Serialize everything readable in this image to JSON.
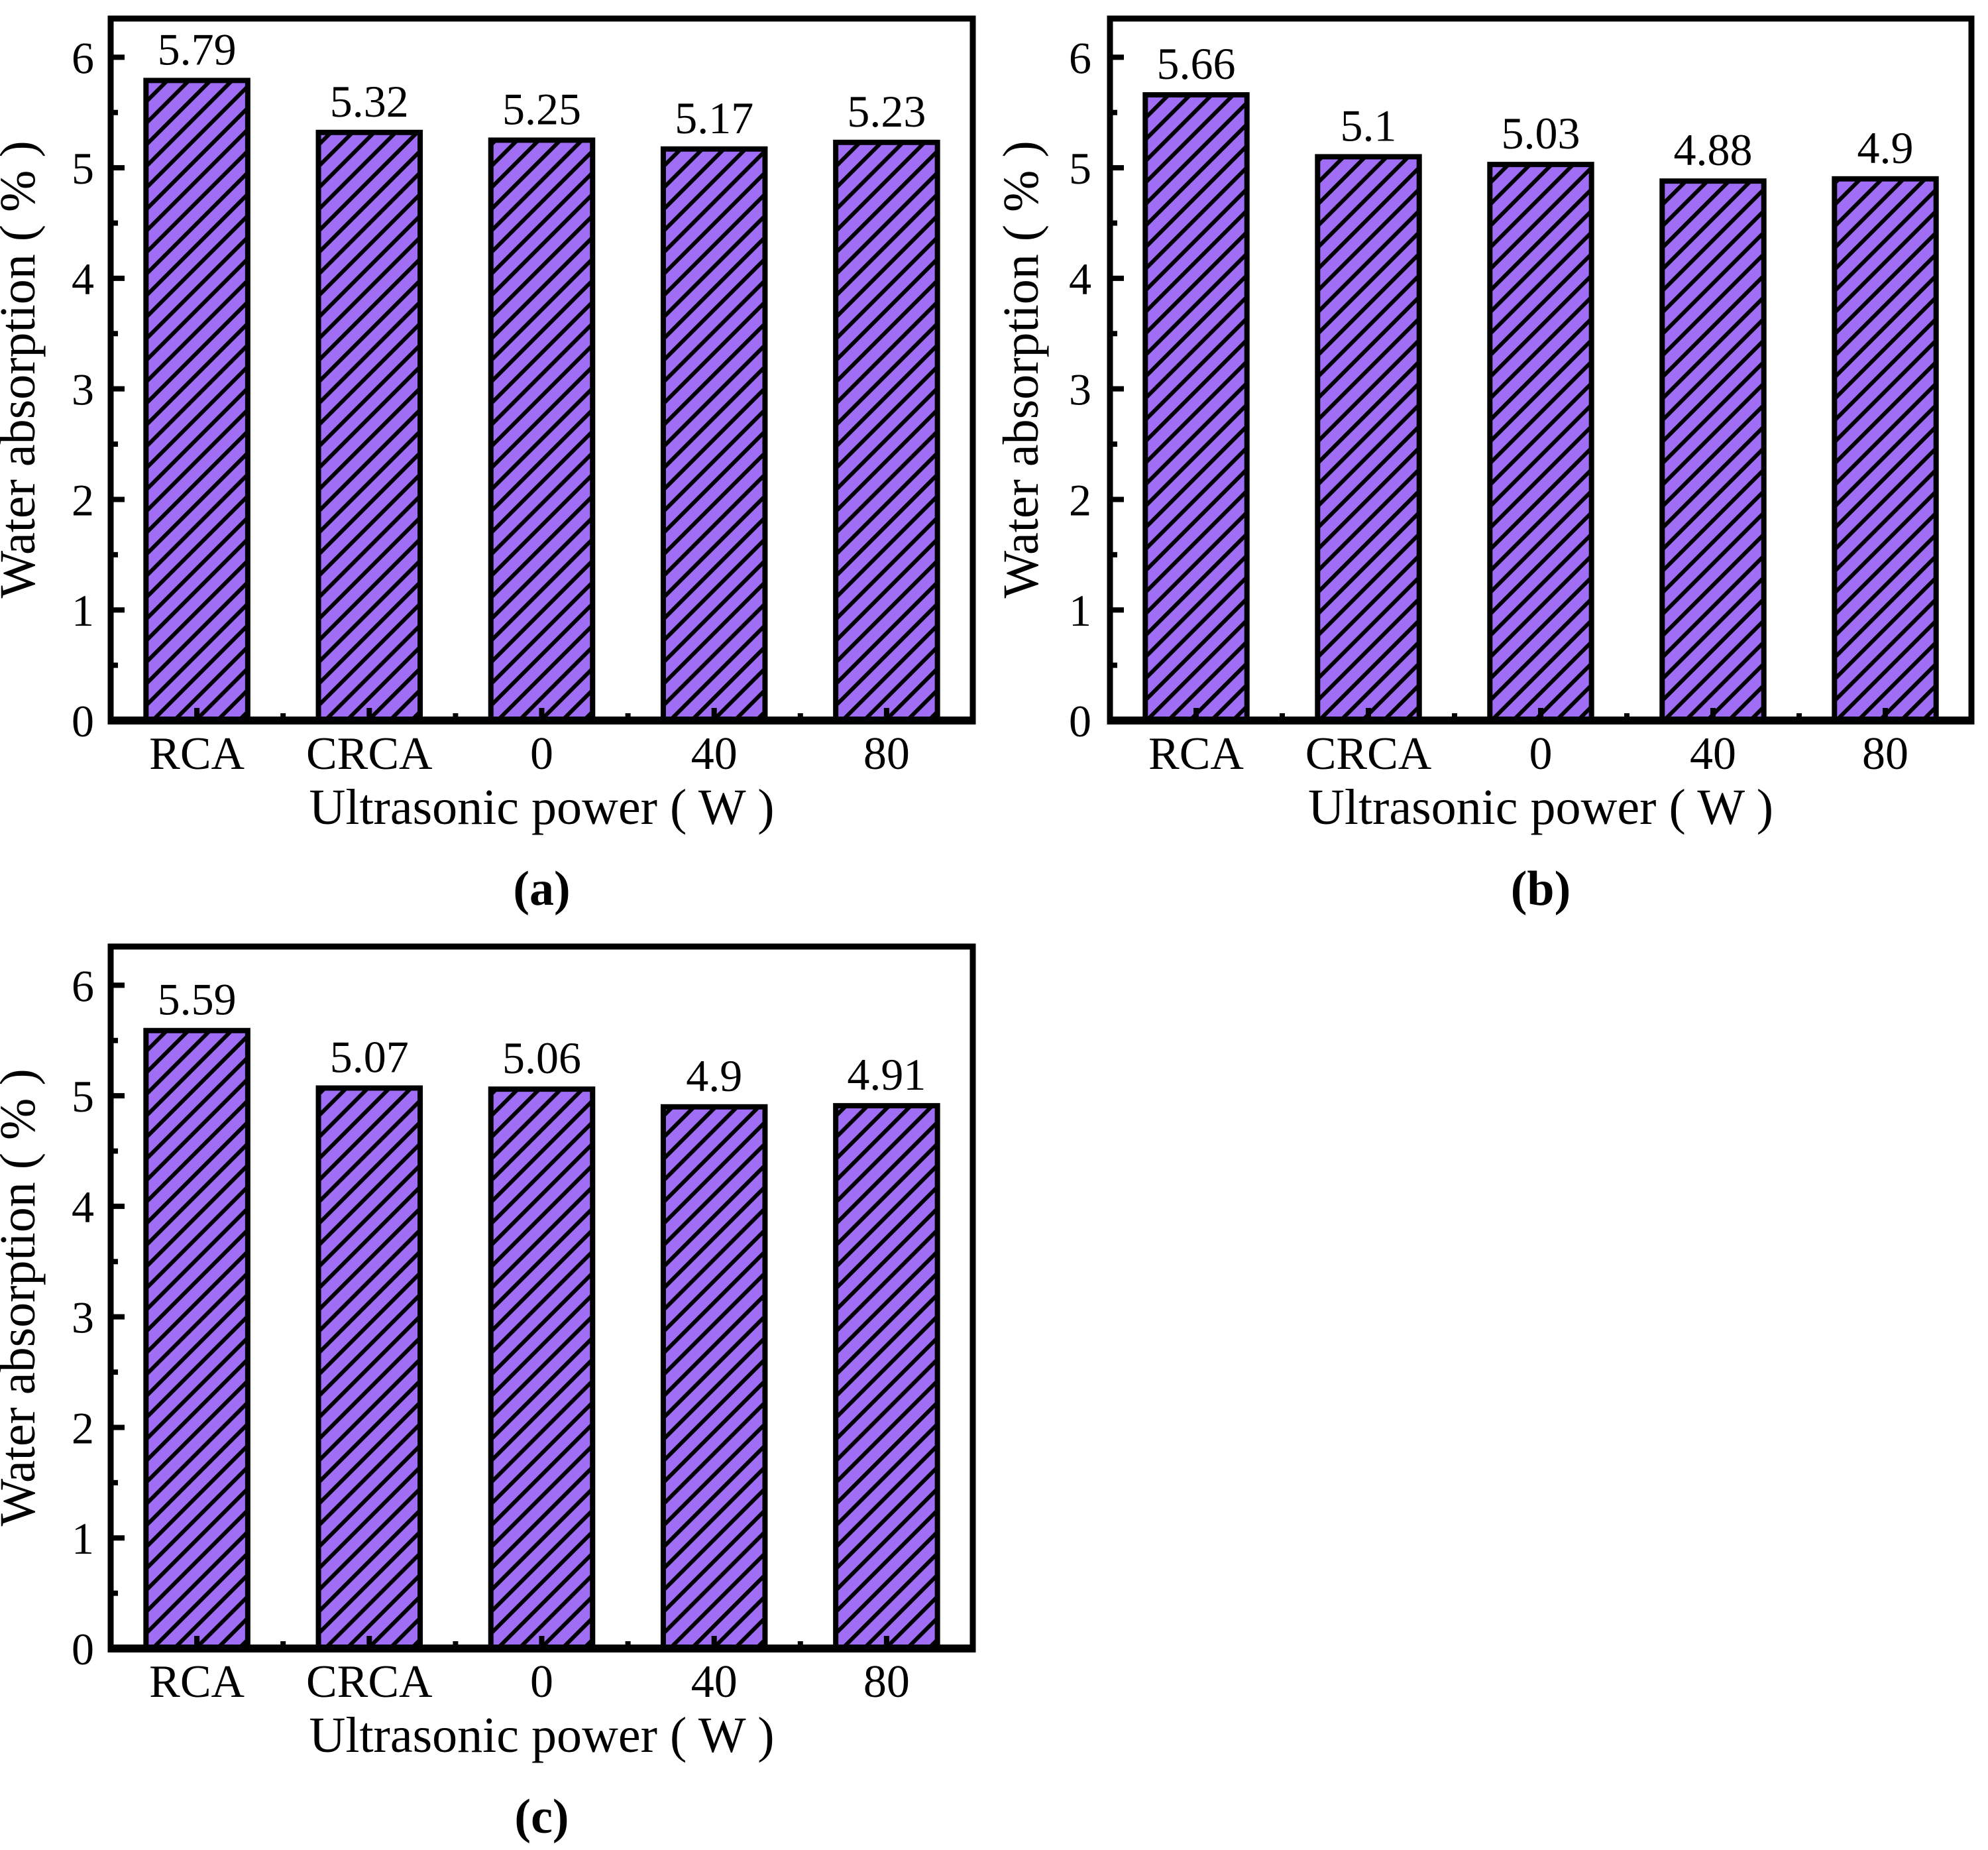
{
  "page": {
    "background": "#FFFFFF",
    "text_color": "#000000"
  },
  "chart_data": [
    {
      "id": "a",
      "type": "bar",
      "caption": "(a)",
      "xlabel": "Ultrasonic power ( W )",
      "ylabel": "Water absorption ( % )",
      "categories": [
        "RCA",
        "CRCA",
        "0",
        "40",
        "80"
      ],
      "values": [
        5.79,
        5.32,
        5.25,
        5.17,
        5.23
      ],
      "value_labels": [
        "5.79",
        "5.32",
        "5.25",
        "5.17",
        "5.23"
      ],
      "yticks": [
        0,
        1,
        2,
        3,
        4,
        5,
        6
      ],
      "ylim": [
        0,
        6.35
      ],
      "bar_fill": "#A06EF5",
      "hatch": "diagonal-forward-black",
      "hatch_color": "#000000",
      "grid": false,
      "legend_position": "none"
    },
    {
      "id": "b",
      "type": "bar",
      "caption": "(b)",
      "xlabel": "Ultrasonic power ( W )",
      "ylabel": "Water absorption ( % )",
      "categories": [
        "RCA",
        "CRCA",
        "0",
        "40",
        "80"
      ],
      "values": [
        5.66,
        5.1,
        5.03,
        4.88,
        4.9
      ],
      "value_labels": [
        "5.66",
        "5.1",
        "5.03",
        "4.88",
        "4.9"
      ],
      "yticks": [
        0,
        1,
        2,
        3,
        4,
        5,
        6
      ],
      "ylim": [
        0,
        6.35
      ],
      "bar_fill": "#A06EF5",
      "hatch": "diagonal-forward-black",
      "hatch_color": "#000000",
      "grid": false,
      "legend_position": "none"
    },
    {
      "id": "c",
      "type": "bar",
      "caption": "(c)",
      "xlabel": "Ultrasonic power ( W )",
      "ylabel": "Water absorption ( % )",
      "categories": [
        "RCA",
        "CRCA",
        "0",
        "40",
        "80"
      ],
      "values": [
        5.59,
        5.07,
        5.06,
        4.9,
        4.91
      ],
      "value_labels": [
        "5.59",
        "5.07",
        "5.06",
        "4.9",
        "4.91"
      ],
      "yticks": [
        0,
        1,
        2,
        3,
        4,
        5,
        6
      ],
      "ylim": [
        0,
        6.35
      ],
      "bar_fill": "#A06EF5",
      "hatch": "diagonal-forward-black",
      "hatch_color": "#000000",
      "grid": false,
      "legend_position": "none"
    }
  ]
}
